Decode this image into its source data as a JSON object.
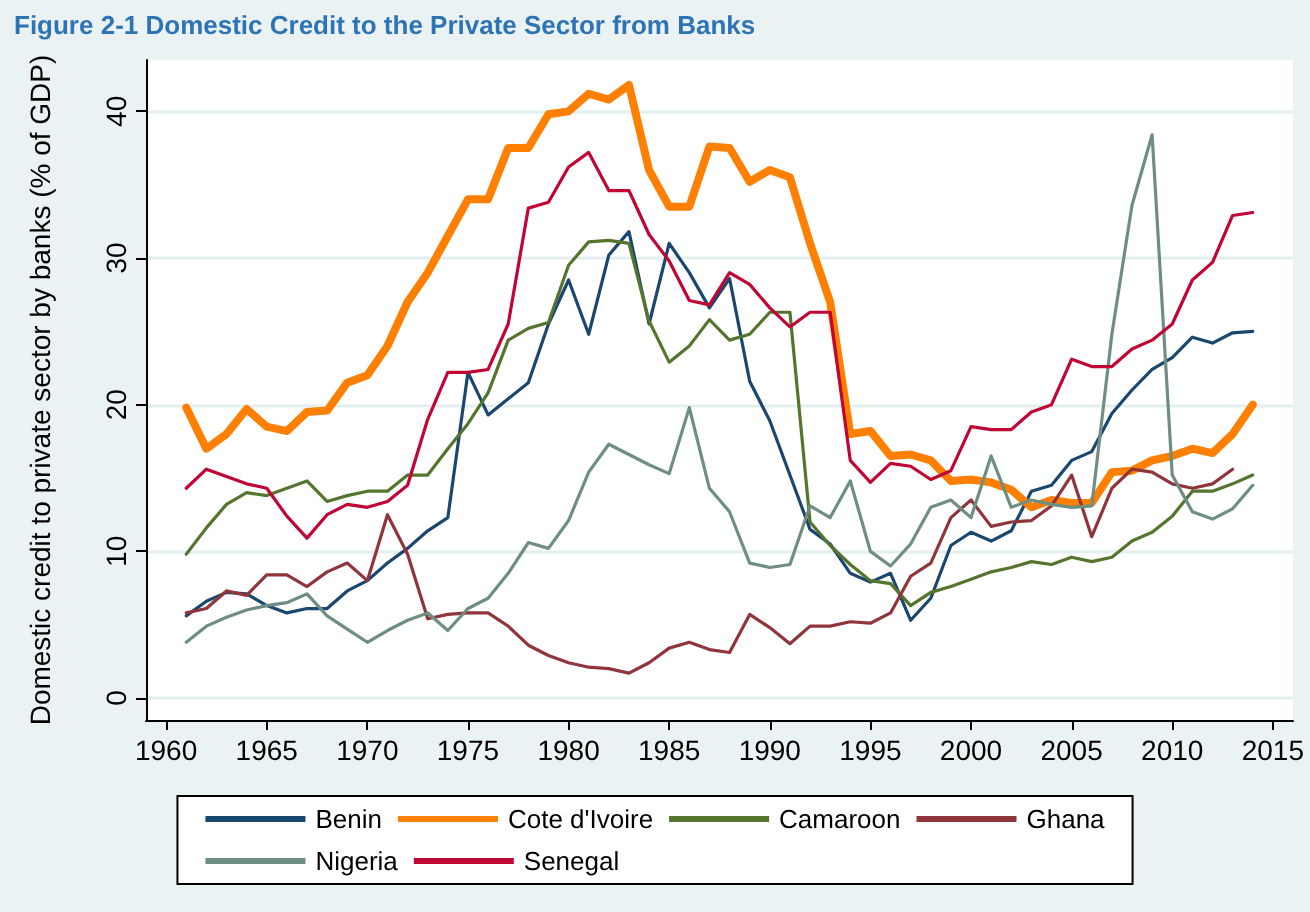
{
  "chart_data": {
    "type": "line",
    "title": "Figure 2-1 Domestic Credit to the Private Sector from Banks",
    "ylabel": "Domestic credit to private sector by banks (% of GDP)",
    "x": [
      1961,
      1962,
      1963,
      1964,
      1965,
      1966,
      1967,
      1968,
      1969,
      1970,
      1971,
      1972,
      1973,
      1974,
      1975,
      1976,
      1977,
      1978,
      1979,
      1980,
      1981,
      1982,
      1983,
      1984,
      1985,
      1986,
      1987,
      1988,
      1989,
      1990,
      1991,
      1992,
      1993,
      1994,
      1995,
      1996,
      1997,
      1998,
      1999,
      2000,
      2001,
      2002,
      2003,
      2004,
      2005,
      2006,
      2007,
      2008,
      2009,
      2010,
      2011,
      2012,
      2013,
      2014
    ],
    "series": [
      {
        "name": "Benin",
        "color": "#1a476f",
        "values": [
          5.6,
          6.6,
          7.2,
          7.1,
          6.3,
          5.8,
          6.1,
          6.1,
          7.3,
          8,
          9.2,
          10.2,
          11.4,
          12.3,
          22.2,
          19.3,
          20.4,
          21.5,
          25.5,
          28.5,
          24.8,
          30.2,
          31.8,
          25.5,
          31,
          29,
          26.6,
          28.6,
          21.6,
          18.9,
          15.2,
          11.5,
          10.5,
          8.5,
          7.9,
          8.5,
          5.3,
          6.8,
          10.4,
          11.3,
          10.7,
          11.4,
          14.1,
          14.5,
          16.2,
          16.8,
          19.4,
          21,
          22.4,
          23.2,
          24.6,
          24.2,
          24.9,
          25
        ]
      },
      {
        "name": "Cote d'Ivoire",
        "color": "#ff7f00",
        "values": [
          19.8,
          17,
          18,
          19.7,
          18.5,
          18.2,
          19.5,
          19.6,
          21.5,
          22,
          24,
          27,
          29,
          31.5,
          34,
          34,
          37.5,
          37.5,
          39.8,
          40,
          41.2,
          40.8,
          41.8,
          36,
          33.5,
          33.5,
          37.6,
          37.5,
          35.2,
          36,
          35.5,
          31,
          27,
          18,
          18.2,
          16.5,
          16.6,
          16.2,
          14.8,
          14.9,
          14.7,
          14.2,
          13,
          13.5,
          13.3,
          13.3,
          15.4,
          15.5,
          16.2,
          16.5,
          17,
          16.7,
          18,
          20
        ]
      },
      {
        "name": "Camaroon",
        "color": "#55752f",
        "values": [
          9.8,
          11.6,
          13.2,
          14,
          13.8,
          14.3,
          14.8,
          13.4,
          13.8,
          14.1,
          14.1,
          15.2,
          15.2,
          17,
          18.7,
          20.8,
          24.4,
          25.2,
          25.6,
          29.5,
          31.1,
          31.2,
          31,
          25.7,
          22.9,
          24,
          25.8,
          24.4,
          24.8,
          26.3,
          26.3,
          12,
          10.4,
          9.1,
          8,
          7.8,
          6.3,
          7.2,
          7.6,
          8.1,
          8.6,
          8.9,
          9.3,
          9.1,
          9.6,
          9.3,
          9.6,
          10.7,
          11.3,
          12.4,
          14.1,
          14.1,
          14.6,
          15.2
        ]
      },
      {
        "name": "Ghana",
        "color": "#90353b",
        "values": [
          5.8,
          6.1,
          7.3,
          7,
          8.4,
          8.4,
          7.6,
          8.6,
          9.2,
          8,
          12.5,
          9.8,
          5.4,
          5.7,
          5.8,
          5.8,
          4.9,
          3.6,
          2.9,
          2.4,
          2.1,
          2,
          1.7,
          2.4,
          3.4,
          3.8,
          3.3,
          3.1,
          5.7,
          4.8,
          3.7,
          4.9,
          4.9,
          5.2,
          5.1,
          5.8,
          8.3,
          9.2,
          12.3,
          13.5,
          11.7,
          12,
          12.1,
          13.1,
          15.2,
          11,
          14.3,
          15.6,
          15.4,
          14.6,
          14.3,
          14.6,
          15.6,
          null
        ]
      },
      {
        "name": "Nigeria",
        "color": "#6e8e84",
        "values": [
          3.8,
          4.9,
          5.5,
          6,
          6.3,
          6.5,
          7.1,
          5.6,
          4.7,
          3.8,
          4.6,
          5.3,
          5.8,
          4.6,
          6.1,
          6.8,
          8.5,
          10.6,
          10.2,
          12.1,
          15.4,
          17.3,
          16.6,
          15.9,
          15.3,
          19.8,
          14.3,
          12.7,
          9.2,
          8.9,
          9.1,
          13.1,
          12.3,
          14.8,
          10,
          9,
          10.5,
          13,
          13.5,
          12.3,
          16.5,
          13,
          13.5,
          13.2,
          13,
          13.1,
          24.8,
          33.6,
          38.4,
          15.2,
          12.7,
          12.2,
          12.9,
          14.5
        ]
      },
      {
        "name": "Senegal",
        "color": "#c10534",
        "values": [
          14.3,
          15.6,
          15.1,
          14.6,
          14.3,
          12.4,
          10.9,
          12.5,
          13.2,
          13,
          13.4,
          14.5,
          19,
          22.2,
          22.2,
          22.4,
          25.5,
          33.4,
          33.8,
          36.2,
          37.2,
          34.6,
          34.6,
          31.6,
          29.8,
          27.1,
          26.8,
          29,
          28.2,
          26.6,
          25.3,
          26.3,
          26.3,
          16.2,
          14.7,
          16,
          15.8,
          14.9,
          15.5,
          18.5,
          18.3,
          18.3,
          19.5,
          20,
          23.1,
          22.6,
          22.6,
          23.8,
          24.4,
          25.5,
          28.5,
          29.7,
          32.9,
          33.1
        ]
      }
    ],
    "xlim": [
      1959,
      2016
    ],
    "xticks": [
      1960,
      1965,
      1970,
      1975,
      1980,
      1985,
      1990,
      1995,
      2000,
      2005,
      2010,
      2015
    ],
    "ylim": [
      -1.5,
      43.5
    ],
    "yticks": [
      0,
      10,
      20,
      30,
      40
    ],
    "grid": "y",
    "legend": "bottom",
    "marker": "none",
    "line_style": "solid"
  }
}
